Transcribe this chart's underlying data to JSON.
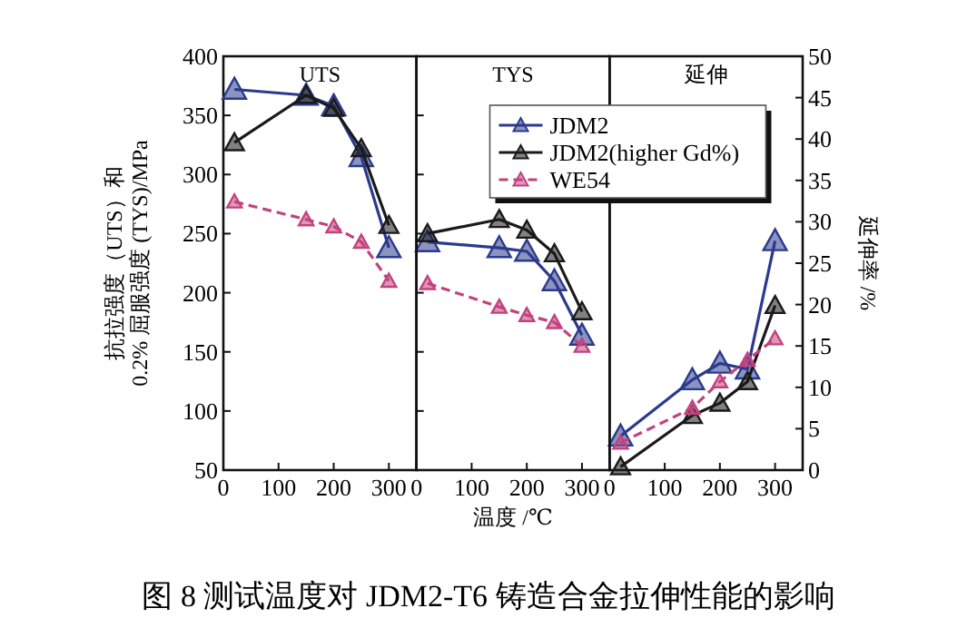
{
  "chart_data": [
    {
      "type": "line",
      "title": "UTS",
      "ylabel": "抗拉强度（UTS）和\n0.2% 屈服强度 (TYS)/MPa",
      "x": [
        20,
        150,
        200,
        250,
        300
      ],
      "xlim": [
        0,
        350
      ],
      "xticks": [
        0,
        100,
        200,
        300
      ],
      "ylim": [
        50,
        400
      ],
      "yticks": [
        50,
        100,
        150,
        200,
        250,
        300,
        350,
        400
      ],
      "marker": "triangle",
      "series": [
        {
          "color": "#2b3a8c",
          "values": [
            372,
            367,
            358,
            315,
            238
          ]
        },
        {
          "color": "#1a1a1a",
          "values": [
            327,
            367,
            356,
            322,
            257
          ]
        },
        {
          "color": "#c2427e",
          "line_style": "dashed",
          "values": [
            277,
            262,
            256,
            243,
            210
          ]
        }
      ]
    },
    {
      "type": "line",
      "title": "TYS",
      "xlabel": "温度 /℃",
      "x": [
        20,
        150,
        200,
        250,
        300
      ],
      "xlim": [
        0,
        350
      ],
      "xticks": [
        0,
        100,
        200,
        300
      ],
      "ylim": [
        50,
        400
      ],
      "yticks": [
        50,
        100,
        150,
        200,
        250,
        300,
        350,
        400
      ],
      "tick_labels": "x",
      "marker": "triangle",
      "legend": "top right",
      "annotations": [
        "图 8  测试温度对 JDM2-T6 铸造合金拉伸性能的影响"
      ],
      "series": [
        {
          "name": "JDM2",
          "color": "#2b3a8c",
          "values": [
            243,
            238,
            235,
            210,
            164
          ]
        },
        {
          "name": "JDM2(higher Gd%)",
          "color": "#1a1a1a",
          "values": [
            250,
            262,
            253,
            233,
            184
          ]
        },
        {
          "name": "WE54",
          "color": "#c2427e",
          "line_style": "dashed",
          "values": [
            208,
            188,
            181,
            175,
            155
          ]
        }
      ]
    },
    {
      "type": "line",
      "title": "延伸",
      "y2label": "延伸率 /%",
      "x": [
        20,
        150,
        200,
        250,
        300
      ],
      "xlim": [
        0,
        350
      ],
      "xticks": [
        0,
        100,
        200,
        300
      ],
      "y2lim": [
        0,
        50
      ],
      "y2ticks": [
        0,
        5,
        10,
        15,
        20,
        25,
        30,
        35,
        40,
        45,
        50
      ],
      "marker": "triangle",
      "series": [
        {
          "color": "#2b3a8c",
          "axis": "y2",
          "values": [
            4.1,
            10.9,
            12.9,
            12.2,
            27.7
          ]
        },
        {
          "color": "#1a1a1a",
          "axis": "y2",
          "values": [
            0.4,
            6.6,
            8.1,
            10.7,
            19.9
          ]
        },
        {
          "color": "#c2427e",
          "axis": "y2",
          "line_style": "dashed",
          "values": [
            3.3,
            7.5,
            10.7,
            13.3,
            15.9
          ]
        }
      ]
    }
  ]
}
